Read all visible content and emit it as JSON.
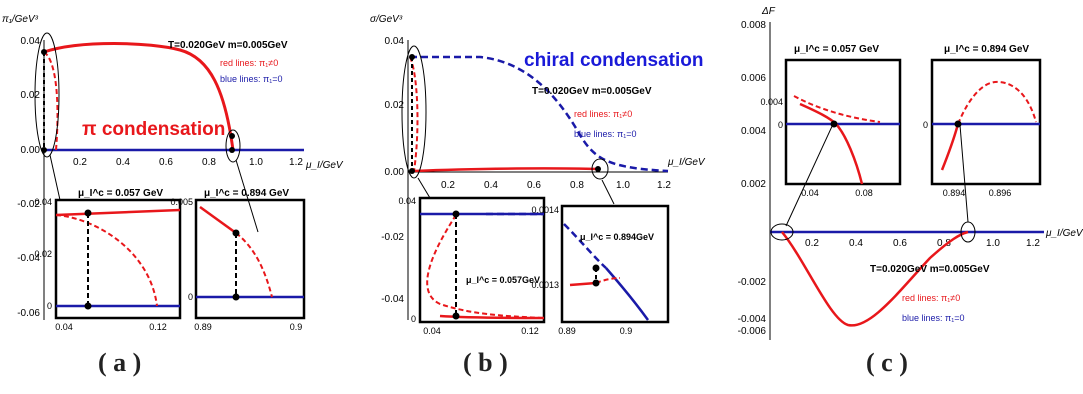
{
  "captions": [
    "( a )",
    "( b )",
    "( c )"
  ],
  "panels": [
    {
      "id": "a",
      "ylabel": "π₁/GeV³",
      "xlabel": "μ_I/GeV",
      "xticks": [
        "0.2",
        "0.4",
        "0.6",
        "0.8",
        "1.0",
        "1.2"
      ],
      "yticks": [
        "0.04",
        "0.02",
        "0.00",
        "-0.02",
        "-0.04",
        "-0.06"
      ],
      "big_label": "π condensation",
      "legend": {
        "params": "T=0.020GeV   m=0.005GeV",
        "red": "red lines: π₁≠0",
        "blue": "blue lines: π₁=0"
      },
      "insets": [
        {
          "title": "μ_I^c = 0.057 GeV",
          "xticks": [
            "0.04",
            "0.12"
          ],
          "yticks": [
            "0.04",
            "0.02",
            "0"
          ]
        },
        {
          "title": "μ_I^c = 0.894 GeV",
          "xticks": [
            "0.89",
            "0.9"
          ],
          "yticks": [
            "0.005",
            "0"
          ]
        }
      ]
    },
    {
      "id": "b",
      "ylabel": "σ/GeV³",
      "xlabel": "μ_I/GeV",
      "xticks": [
        "0.2",
        "0.4",
        "0.6",
        "0.8",
        "1.0",
        "1.2"
      ],
      "yticks": [
        "0.04",
        "0.02",
        "0.00"
      ],
      "lower_yticks": [
        "-0.02",
        "-0.04"
      ],
      "big_label": "chiral condensation",
      "legend": {
        "params": "T=0.020GeV   m=0.005GeV",
        "red": "red lines: π₁≠0",
        "blue": "blue lines: π₁=0"
      },
      "insets": [
        {
          "title": "μ_I^c = 0.057GeV",
          "xticks": [
            "0.04",
            "0.12"
          ],
          "yticks": [
            "0.04",
            "0"
          ]
        },
        {
          "title": "μ_I^c = 0.894GeV",
          "xticks": [
            "0.89",
            "0.9"
          ],
          "yticks": [
            "0.0014",
            "0.0013"
          ]
        }
      ]
    },
    {
      "id": "c",
      "ylabel": "ΔF",
      "xlabel": "μ_I/GeV",
      "xticks": [
        "0.2",
        "0.4",
        "0.6",
        "0.8",
        "1.0",
        "1.2"
      ],
      "yticks": [
        "0.008",
        "0.006",
        "0.004",
        "0.002",
        "-0.002",
        "-0.004",
        "-0.006"
      ],
      "legend": {
        "params": "T=0.020GeV   m=0.005GeV",
        "red": "red lines: π₁≠0",
        "blue": "blue lines: π₁=0"
      },
      "insets": [
        {
          "title": "μ_I^c = 0.057 GeV",
          "xticks": [
            "0.04",
            "0.08"
          ],
          "yticks": [
            "0.004",
            "0"
          ]
        },
        {
          "title": "μ_I^c = 0.894 GeV",
          "xticks": [
            "0.894",
            "0.896"
          ],
          "yticks": [
            "0"
          ]
        }
      ]
    }
  ],
  "colors": {
    "red": "#e8171b",
    "blue": "#1a1aa8",
    "black": "#000000"
  },
  "chart_data": [
    {
      "type": "line",
      "title": "",
      "xlabel": "μ_I/GeV",
      "ylabel": "π₁/GeV³",
      "xlim": [
        0,
        1.2
      ],
      "ylim": [
        -0.065,
        0.04
      ],
      "series": [
        {
          "name": "red lines: π₁≠0",
          "x": [
            0.057,
            0.1,
            0.2,
            0.3,
            0.4,
            0.5,
            0.6,
            0.7,
            0.8,
            0.85,
            0.894
          ],
          "y": [
            0.035,
            0.036,
            0.037,
            0.0373,
            0.0372,
            0.0365,
            0.0345,
            0.031,
            0.022,
            0.014,
            0.0
          ]
        },
        {
          "name": "blue lines: π₁=0",
          "x": [
            0.0,
            1.2
          ],
          "y": [
            0.0,
            0.0
          ]
        }
      ]
    },
    {
      "type": "line",
      "title": "",
      "xlabel": "μ_I/GeV",
      "ylabel": "σ/GeV³",
      "xlim": [
        0,
        1.2
      ],
      "ylim": [
        -0.045,
        0.04
      ],
      "series": [
        {
          "name": "blue lines: π₁=0",
          "x": [
            0.04,
            0.2,
            0.3,
            0.4,
            0.5,
            0.6,
            0.7,
            0.75,
            0.8,
            0.85,
            1.0,
            1.2
          ],
          "y": [
            0.035,
            0.035,
            0.034,
            0.032,
            0.028,
            0.022,
            0.014,
            0.008,
            0.003,
            0.0013,
            0.0004,
            0.0002
          ]
        },
        {
          "name": "red lines: π₁≠0",
          "x": [
            0.057,
            0.1,
            0.3,
            0.5,
            0.7,
            0.894
          ],
          "y": [
            0.0013,
            0.0012,
            0.0011,
            0.0011,
            0.0012,
            0.0013
          ]
        }
      ]
    },
    {
      "type": "line",
      "title": "",
      "xlabel": "μ_I/GeV",
      "ylabel": "ΔF",
      "xlim": [
        0,
        1.2
      ],
      "ylim": [
        -0.006,
        0.008
      ],
      "series": [
        {
          "name": "red lines: π₁≠0",
          "x": [
            0.057,
            0.1,
            0.15,
            0.2,
            0.25,
            0.3,
            0.35,
            0.4,
            0.5,
            0.6,
            0.7,
            0.8,
            0.894
          ],
          "y": [
            0.0,
            -0.0015,
            -0.0035,
            -0.0048,
            -0.0055,
            -0.0056,
            -0.0054,
            -0.0049,
            -0.0037,
            -0.0024,
            -0.0012,
            -0.0004,
            0.0
          ]
        },
        {
          "name": "blue lines: π₁=0",
          "x": [
            0.0,
            1.2
          ],
          "y": [
            0.0,
            0.0
          ]
        }
      ]
    }
  ]
}
